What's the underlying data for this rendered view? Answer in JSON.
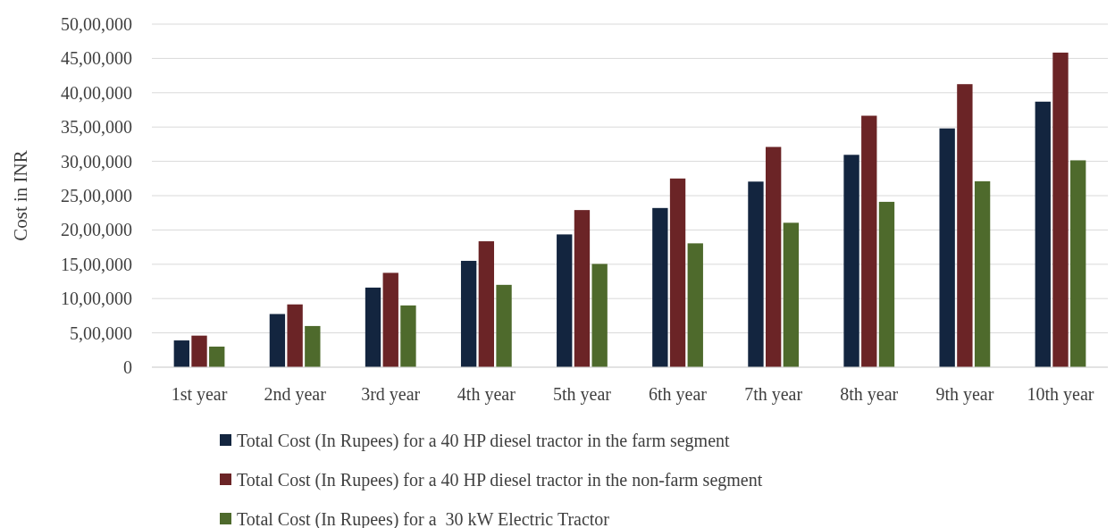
{
  "chart_data": {
    "type": "bar",
    "ylabel": "Cost in INR",
    "categories": [
      "1st year",
      "2nd year",
      "3rd year",
      "4th year",
      "5th year",
      "6th year",
      "7th year",
      "8th year",
      "9th year",
      "10th year"
    ],
    "series": [
      {
        "name": "Total Cost (In Rupees) for a 40 HP diesel tractor in the farm segment",
        "color": "#13253f",
        "values": [
          390000,
          775000,
          1160000,
          1550000,
          1935000,
          2320000,
          2705000,
          3095000,
          3480000,
          3870000
        ]
      },
      {
        "name": "Total Cost (In Rupees) for a 40 HP diesel tractor in the non-farm segment",
        "color": "#6b2426",
        "values": [
          460000,
          915000,
          1375000,
          1835000,
          2290000,
          2750000,
          3210000,
          3665000,
          4125000,
          4585000
        ]
      },
      {
        "name": "Total Cost (In Rupees) for a  30 kW Electric Tractor",
        "color": "#4e6a2c",
        "values": [
          300000,
          600000,
          900000,
          1200000,
          1505000,
          1805000,
          2105000,
          2410000,
          2710000,
          3015000
        ]
      }
    ],
    "ylim": [
      0,
      5000000
    ],
    "yticks": [
      0,
      {
        "value": 500000,
        "label": "5,00,000"
      },
      {
        "value": 1000000,
        "label": "10,00,000"
      },
      {
        "value": 1500000,
        "label": "15,00,000"
      },
      {
        "value": 2000000,
        "label": "20,00,000"
      },
      {
        "value": 2500000,
        "label": "25,00,000"
      },
      {
        "value": 3000000,
        "label": "30,00,000"
      },
      {
        "value": 3500000,
        "label": "35,00,000"
      },
      {
        "value": 4000000,
        "label": "40,00,000"
      },
      {
        "value": 4500000,
        "label": "45,00,000"
      },
      {
        "value": 5000000,
        "label": "50,00,000"
      }
    ],
    "grid": "y",
    "legend": "bottom"
  }
}
